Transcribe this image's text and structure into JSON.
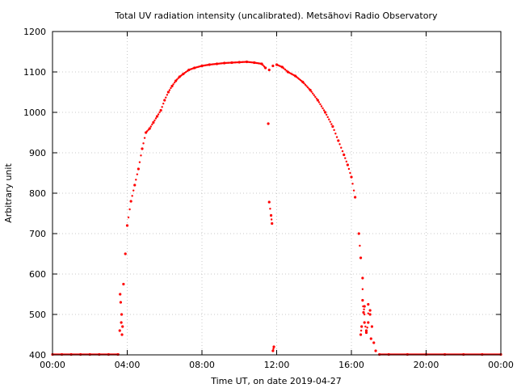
{
  "chart_data": {
    "type": "scatter",
    "title": "Total UV radiation intensity (uncalibrated). Metsähovi Radio Observatory",
    "xlabel": "Time UT, on date 2019-04-27",
    "ylabel": "Arbitrary unit",
    "xlim": [
      0,
      24
    ],
    "ylim": [
      400,
      1200
    ],
    "x_ticks": [
      {
        "value": 0,
        "label": "00:00"
      },
      {
        "value": 4,
        "label": "04:00"
      },
      {
        "value": 8,
        "label": "08:00"
      },
      {
        "value": 12,
        "label": "12:00"
      },
      {
        "value": 16,
        "label": "16:00"
      },
      {
        "value": 20,
        "label": "20:00"
      },
      {
        "value": 24,
        "label": "00:00"
      }
    ],
    "y_ticks": [
      400,
      500,
      600,
      700,
      800,
      900,
      1000,
      1100,
      1200
    ],
    "grid": true,
    "marker_color": "#ff0000",
    "series": [
      {
        "color": "#ff0000",
        "x": [
          0.0,
          0.5,
          1.0,
          1.5,
          2.0,
          2.5,
          3.0,
          3.5,
          3.6,
          3.65,
          3.7,
          3.75,
          3.8,
          3.9,
          4.0,
          4.2,
          4.4,
          4.6,
          4.8,
          5.0,
          5.2,
          5.4,
          5.6,
          5.8,
          6.0,
          6.2,
          6.4,
          6.6,
          6.8,
          7.0,
          7.3,
          7.6,
          8.0,
          8.4,
          8.8,
          9.2,
          9.6,
          10.0,
          10.4,
          10.8,
          11.2,
          11.4,
          11.6,
          11.8,
          12.0,
          12.3,
          12.6,
          13.0,
          13.4,
          13.8,
          14.2,
          14.6,
          15.0,
          15.3,
          15.6,
          15.8,
          16.0,
          16.2,
          16.4,
          16.5,
          16.6,
          16.7,
          16.8,
          16.9,
          17.0,
          17.1,
          17.2,
          17.3,
          17.5,
          18.0,
          19.0,
          20.0,
          21.0,
          22.0,
          23.0,
          24.0,
          3.62,
          3.68,
          3.72,
          11.55,
          11.6,
          11.7,
          11.75,
          11.8,
          11.85,
          16.5,
          16.55,
          16.6,
          16.65,
          16.7,
          16.8,
          16.9,
          17.0,
          17.05
        ],
        "y": [
          401,
          401,
          401,
          401,
          401,
          401,
          401,
          401,
          460,
          530,
          500,
          470,
          575,
          650,
          720,
          780,
          820,
          860,
          910,
          950,
          960,
          975,
          990,
          1005,
          1030,
          1050,
          1065,
          1078,
          1088,
          1095,
          1105,
          1110,
          1115,
          1118,
          1120,
          1122,
          1123,
          1124,
          1125,
          1123,
          1120,
          1110,
          1105,
          1115,
          1118,
          1112,
          1100,
          1090,
          1075,
          1055,
          1030,
          1000,
          965,
          930,
          895,
          870,
          840,
          790,
          700,
          640,
          590,
          520,
          460,
          480,
          500,
          470,
          430,
          410,
          401,
          401,
          401,
          401,
          401,
          401,
          401,
          401,
          550,
          480,
          450,
          972,
          778,
          745,
          725,
          410,
          420,
          450,
          470,
          535,
          505,
          480,
          455,
          525,
          510,
          440
        ]
      }
    ]
  }
}
